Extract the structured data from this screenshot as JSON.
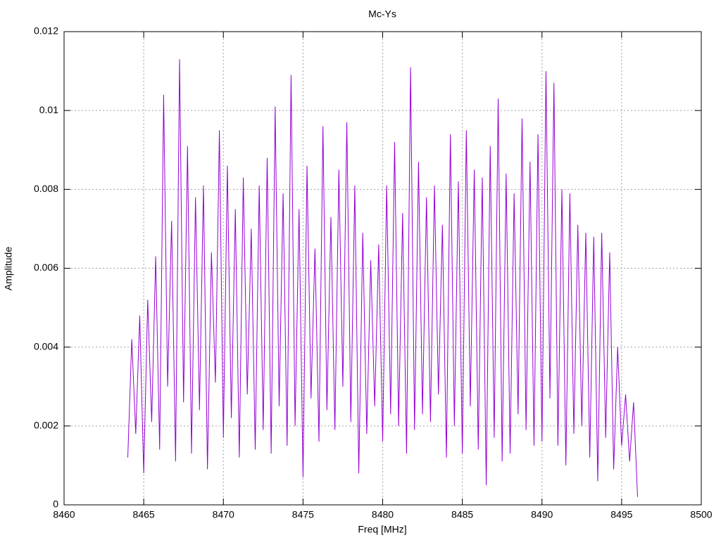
{
  "chart_data": {
    "type": "line",
    "title": "Mc-Ys",
    "xlabel": "Freq [MHz]",
    "ylabel": "Amplitude",
    "xlim": [
      8460,
      8500
    ],
    "xticks": [
      8460,
      8465,
      8470,
      8475,
      8480,
      8485,
      8490,
      8495,
      8500
    ],
    "ylim": [
      0,
      0.012
    ],
    "yticks": [
      0,
      0.002,
      0.004,
      0.006,
      0.008,
      0.01,
      0.012
    ],
    "grid": true,
    "series": [
      {
        "color": "#9400d3",
        "x": [
          8464,
          8464.25,
          8464.5,
          8464.75,
          8465,
          8465.25,
          8465.5,
          8465.75,
          8466,
          8466.25,
          8466.5,
          8466.75,
          8467,
          8467.25,
          8467.5,
          8467.75,
          8468,
          8468.25,
          8468.5,
          8468.75,
          8469,
          8469.25,
          8469.5,
          8469.75,
          8470,
          8470.25,
          8470.5,
          8470.75,
          8471,
          8471.25,
          8471.5,
          8471.75,
          8472,
          8472.25,
          8472.5,
          8472.75,
          8473,
          8473.25,
          8473.5,
          8473.75,
          8474,
          8474.25,
          8474.5,
          8474.75,
          8475,
          8475.25,
          8475.5,
          8475.75,
          8476,
          8476.25,
          8476.5,
          8476.75,
          8477,
          8477.25,
          8477.5,
          8477.75,
          8478,
          8478.25,
          8478.5,
          8478.75,
          8479,
          8479.25,
          8479.5,
          8479.75,
          8480,
          8480.25,
          8480.5,
          8480.75,
          8481,
          8481.25,
          8481.5,
          8481.75,
          8482,
          8482.25,
          8482.5,
          8482.75,
          8483,
          8483.25,
          8483.5,
          8483.75,
          8484,
          8484.25,
          8484.5,
          8484.75,
          8485,
          8485.25,
          8485.5,
          8485.75,
          8486,
          8486.25,
          8486.5,
          8486.75,
          8487,
          8487.25,
          8487.5,
          8487.75,
          8488,
          8488.25,
          8488.5,
          8488.75,
          8489,
          8489.25,
          8489.5,
          8489.75,
          8490,
          8490.25,
          8490.5,
          8490.75,
          8491,
          8491.25,
          8491.5,
          8491.75,
          8492,
          8492.25,
          8492.5,
          8492.75,
          8493,
          8493.25,
          8493.5,
          8493.75,
          8494,
          8494.25,
          8494.5,
          8494.75,
          8495,
          8495.25,
          8495.5,
          8495.75,
          8496
        ],
        "values": [
          0.0012,
          0.0042,
          0.0018,
          0.0048,
          0.0008,
          0.0052,
          0.0021,
          0.0063,
          0.0014,
          0.0104,
          0.003,
          0.0072,
          0.0011,
          0.0113,
          0.0026,
          0.0091,
          0.0013,
          0.0078,
          0.0024,
          0.0081,
          0.0009,
          0.0064,
          0.0031,
          0.0095,
          0.0017,
          0.0086,
          0.0022,
          0.0075,
          0.0012,
          0.0083,
          0.0028,
          0.007,
          0.0014,
          0.0081,
          0.0019,
          0.0088,
          0.0013,
          0.0101,
          0.0025,
          0.0079,
          0.0015,
          0.0109,
          0.002,
          0.0075,
          0.0007,
          0.0086,
          0.0027,
          0.0065,
          0.0016,
          0.0096,
          0.0024,
          0.0073,
          0.0019,
          0.0085,
          0.003,
          0.0097,
          0.0021,
          0.0081,
          0.0008,
          0.0069,
          0.0018,
          0.0062,
          0.0025,
          0.0066,
          0.0016,
          0.0081,
          0.0023,
          0.0092,
          0.002,
          0.0074,
          0.0013,
          0.0111,
          0.0019,
          0.0087,
          0.0023,
          0.0078,
          0.0021,
          0.0081,
          0.0028,
          0.0071,
          0.0012,
          0.0094,
          0.002,
          0.0082,
          0.0013,
          0.0095,
          0.0025,
          0.0085,
          0.0014,
          0.0083,
          0.0005,
          0.0091,
          0.0017,
          0.0103,
          0.0011,
          0.0084,
          0.0013,
          0.0079,
          0.0023,
          0.0098,
          0.0019,
          0.0087,
          0.0015,
          0.0094,
          0.0016,
          0.011,
          0.0027,
          0.0107,
          0.0015,
          0.008,
          0.001,
          0.0079,
          0.0018,
          0.0071,
          0.002,
          0.0069,
          0.0012,
          0.0068,
          0.0006,
          0.0069,
          0.0017,
          0.0064,
          0.0009,
          0.004,
          0.0015,
          0.0028,
          0.0011,
          0.0026,
          0.0002
        ]
      }
    ]
  }
}
